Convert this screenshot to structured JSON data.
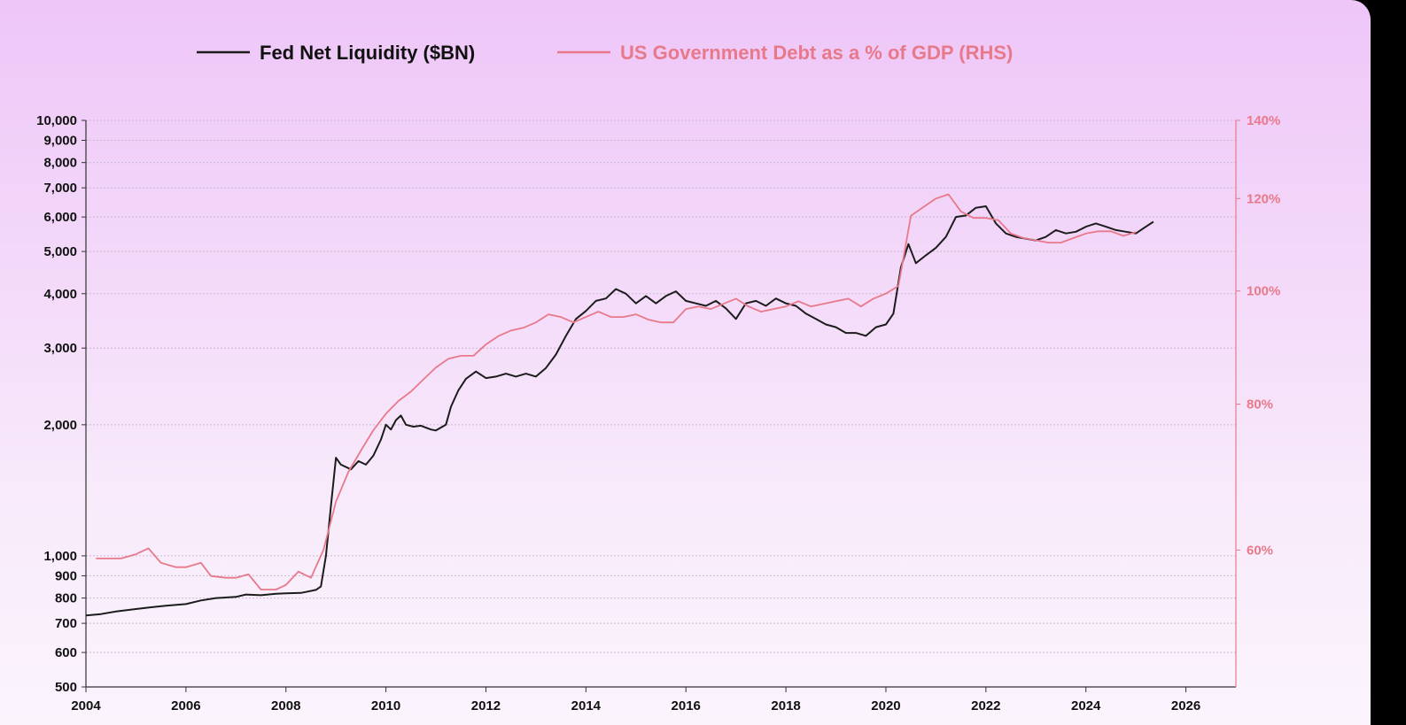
{
  "chart_data": {
    "type": "line",
    "title": "",
    "colors": {
      "liquidity": "#1c1c1c",
      "debt": "#e8798a",
      "grid": "#c9b7cf",
      "axis_left": "#333333"
    },
    "legend": [
      {
        "label": "Fed Net Liquidity ($BN)",
        "color": "#1c1c1c"
      },
      {
        "label": "US Government Debt as a % of GDP (RHS)",
        "color": "#e8798a"
      }
    ],
    "xlim": [
      2004,
      2027
    ],
    "x_ticks": [
      2004,
      2006,
      2008,
      2010,
      2012,
      2014,
      2016,
      2018,
      2020,
      2022,
      2024,
      2026
    ],
    "left_axis": {
      "scale": "log",
      "range": [
        500,
        10000
      ],
      "ticks": [
        500,
        600,
        700,
        800,
        900,
        1000,
        2000,
        3000,
        4000,
        5000,
        6000,
        7000,
        8000,
        9000,
        10000
      ],
      "tick_labels": [
        "500",
        "600",
        "700",
        "800",
        "900",
        "1,000",
        "2,000",
        "3,000",
        "4,000",
        "5,000",
        "6,000",
        "7,000",
        "8,000",
        "9,000",
        "10,000"
      ]
    },
    "right_axis": {
      "scale": "log",
      "range": [
        45.8,
        140
      ],
      "ticks": [
        60,
        80,
        100,
        120,
        140
      ],
      "tick_labels": [
        "60%",
        "80%",
        "100%",
        "120%",
        "140%"
      ]
    },
    "series": [
      {
        "name": "Fed Net Liquidity ($BN)",
        "axis": "left",
        "points": [
          [
            2004.0,
            730
          ],
          [
            2004.3,
            735
          ],
          [
            2004.6,
            745
          ],
          [
            2005.0,
            755
          ],
          [
            2005.3,
            762
          ],
          [
            2005.6,
            768
          ],
          [
            2006.0,
            775
          ],
          [
            2006.3,
            790
          ],
          [
            2006.6,
            800
          ],
          [
            2007.0,
            805
          ],
          [
            2007.2,
            815
          ],
          [
            2007.5,
            812
          ],
          [
            2007.8,
            818
          ],
          [
            2008.0,
            820
          ],
          [
            2008.3,
            822
          ],
          [
            2008.6,
            835
          ],
          [
            2008.7,
            850
          ],
          [
            2008.8,
            1000
          ],
          [
            2008.9,
            1300
          ],
          [
            2009.0,
            1680
          ],
          [
            2009.1,
            1620
          ],
          [
            2009.3,
            1580
          ],
          [
            2009.45,
            1650
          ],
          [
            2009.6,
            1620
          ],
          [
            2009.75,
            1700
          ],
          [
            2009.9,
            1850
          ],
          [
            2010.0,
            2000
          ],
          [
            2010.1,
            1950
          ],
          [
            2010.2,
            2050
          ],
          [
            2010.3,
            2100
          ],
          [
            2010.4,
            2000
          ],
          [
            2010.55,
            1980
          ],
          [
            2010.7,
            1990
          ],
          [
            2010.9,
            1950
          ],
          [
            2011.0,
            1940
          ],
          [
            2011.2,
            2000
          ],
          [
            2011.3,
            2200
          ],
          [
            2011.45,
            2400
          ],
          [
            2011.6,
            2550
          ],
          [
            2011.8,
            2650
          ],
          [
            2012.0,
            2560
          ],
          [
            2012.2,
            2580
          ],
          [
            2012.4,
            2620
          ],
          [
            2012.6,
            2580
          ],
          [
            2012.8,
            2620
          ],
          [
            2013.0,
            2580
          ],
          [
            2013.2,
            2700
          ],
          [
            2013.4,
            2900
          ],
          [
            2013.6,
            3200
          ],
          [
            2013.8,
            3500
          ],
          [
            2014.0,
            3650
          ],
          [
            2014.2,
            3850
          ],
          [
            2014.4,
            3900
          ],
          [
            2014.6,
            4100
          ],
          [
            2014.8,
            4000
          ],
          [
            2015.0,
            3800
          ],
          [
            2015.2,
            3950
          ],
          [
            2015.4,
            3800
          ],
          [
            2015.6,
            3950
          ],
          [
            2015.8,
            4050
          ],
          [
            2016.0,
            3850
          ],
          [
            2016.2,
            3800
          ],
          [
            2016.4,
            3750
          ],
          [
            2016.6,
            3850
          ],
          [
            2016.8,
            3700
          ],
          [
            2017.0,
            3500
          ],
          [
            2017.2,
            3800
          ],
          [
            2017.4,
            3850
          ],
          [
            2017.6,
            3750
          ],
          [
            2017.8,
            3900
          ],
          [
            2018.0,
            3800
          ],
          [
            2018.2,
            3750
          ],
          [
            2018.4,
            3600
          ],
          [
            2018.6,
            3500
          ],
          [
            2018.8,
            3400
          ],
          [
            2019.0,
            3350
          ],
          [
            2019.2,
            3250
          ],
          [
            2019.4,
            3250
          ],
          [
            2019.6,
            3200
          ],
          [
            2019.8,
            3350
          ],
          [
            2020.0,
            3400
          ],
          [
            2020.15,
            3600
          ],
          [
            2020.3,
            4600
          ],
          [
            2020.45,
            5200
          ],
          [
            2020.6,
            4700
          ],
          [
            2020.8,
            4900
          ],
          [
            2021.0,
            5100
          ],
          [
            2021.2,
            5400
          ],
          [
            2021.4,
            6000
          ],
          [
            2021.6,
            6050
          ],
          [
            2021.8,
            6300
          ],
          [
            2022.0,
            6350
          ],
          [
            2022.2,
            5800
          ],
          [
            2022.4,
            5500
          ],
          [
            2022.6,
            5400
          ],
          [
            2022.8,
            5350
          ],
          [
            2023.0,
            5300
          ],
          [
            2023.2,
            5400
          ],
          [
            2023.4,
            5600
          ],
          [
            2023.6,
            5500
          ],
          [
            2023.8,
            5550
          ],
          [
            2024.0,
            5700
          ],
          [
            2024.2,
            5800
          ],
          [
            2024.4,
            5700
          ],
          [
            2024.6,
            5600
          ],
          [
            2024.8,
            5550
          ],
          [
            2025.0,
            5500
          ],
          [
            2025.2,
            5700
          ],
          [
            2025.35,
            5850
          ]
        ]
      },
      {
        "name": "US Government Debt as a % of GDP (RHS)",
        "axis": "right",
        "points": [
          [
            2004.2,
            59.0
          ],
          [
            2004.7,
            59.0
          ],
          [
            2005.0,
            59.5
          ],
          [
            2005.25,
            60.2
          ],
          [
            2005.5,
            58.5
          ],
          [
            2005.8,
            58.0
          ],
          [
            2006.0,
            58.0
          ],
          [
            2006.3,
            58.5
          ],
          [
            2006.5,
            57.0
          ],
          [
            2006.8,
            56.8
          ],
          [
            2007.0,
            56.8
          ],
          [
            2007.25,
            57.2
          ],
          [
            2007.5,
            55.5
          ],
          [
            2007.8,
            55.5
          ],
          [
            2008.0,
            56.0
          ],
          [
            2008.25,
            57.5
          ],
          [
            2008.5,
            56.8
          ],
          [
            2008.75,
            60.0
          ],
          [
            2009.0,
            66.0
          ],
          [
            2009.25,
            70.0
          ],
          [
            2009.5,
            73.0
          ],
          [
            2009.75,
            76.0
          ],
          [
            2010.0,
            78.5
          ],
          [
            2010.25,
            80.5
          ],
          [
            2010.5,
            82.0
          ],
          [
            2010.75,
            84.0
          ],
          [
            2011.0,
            86.0
          ],
          [
            2011.25,
            87.5
          ],
          [
            2011.5,
            88.0
          ],
          [
            2011.75,
            88.0
          ],
          [
            2012.0,
            90.0
          ],
          [
            2012.25,
            91.5
          ],
          [
            2012.5,
            92.5
          ],
          [
            2012.75,
            93.0
          ],
          [
            2013.0,
            94.0
          ],
          [
            2013.25,
            95.5
          ],
          [
            2013.5,
            95.0
          ],
          [
            2013.75,
            94.0
          ],
          [
            2014.0,
            95.0
          ],
          [
            2014.25,
            96.0
          ],
          [
            2014.5,
            95.0
          ],
          [
            2014.75,
            95.0
          ],
          [
            2015.0,
            95.5
          ],
          [
            2015.25,
            94.5
          ],
          [
            2015.5,
            94.0
          ],
          [
            2015.75,
            94.0
          ],
          [
            2016.0,
            96.5
          ],
          [
            2016.25,
            97.0
          ],
          [
            2016.5,
            96.5
          ],
          [
            2016.75,
            97.5
          ],
          [
            2017.0,
            98.5
          ],
          [
            2017.25,
            97.0
          ],
          [
            2017.5,
            96.0
          ],
          [
            2017.75,
            96.5
          ],
          [
            2018.0,
            97.0
          ],
          [
            2018.25,
            98.0
          ],
          [
            2018.5,
            97.0
          ],
          [
            2018.75,
            97.5
          ],
          [
            2019.0,
            98.0
          ],
          [
            2019.25,
            98.5
          ],
          [
            2019.5,
            97.0
          ],
          [
            2019.75,
            98.5
          ],
          [
            2020.0,
            99.5
          ],
          [
            2020.25,
            101.0
          ],
          [
            2020.5,
            116.0
          ],
          [
            2020.75,
            118.0
          ],
          [
            2021.0,
            120.0
          ],
          [
            2021.25,
            121.0
          ],
          [
            2021.5,
            117.0
          ],
          [
            2021.75,
            115.5
          ],
          [
            2022.0,
            115.5
          ],
          [
            2022.25,
            115.0
          ],
          [
            2022.5,
            112.0
          ],
          [
            2022.75,
            111.0
          ],
          [
            2023.0,
            110.5
          ],
          [
            2023.25,
            110.0
          ],
          [
            2023.5,
            110.0
          ],
          [
            2023.75,
            111.0
          ],
          [
            2024.0,
            112.0
          ],
          [
            2024.25,
            112.5
          ],
          [
            2024.5,
            112.5
          ],
          [
            2024.75,
            111.5
          ],
          [
            2025.0,
            112.3
          ]
        ]
      }
    ]
  }
}
